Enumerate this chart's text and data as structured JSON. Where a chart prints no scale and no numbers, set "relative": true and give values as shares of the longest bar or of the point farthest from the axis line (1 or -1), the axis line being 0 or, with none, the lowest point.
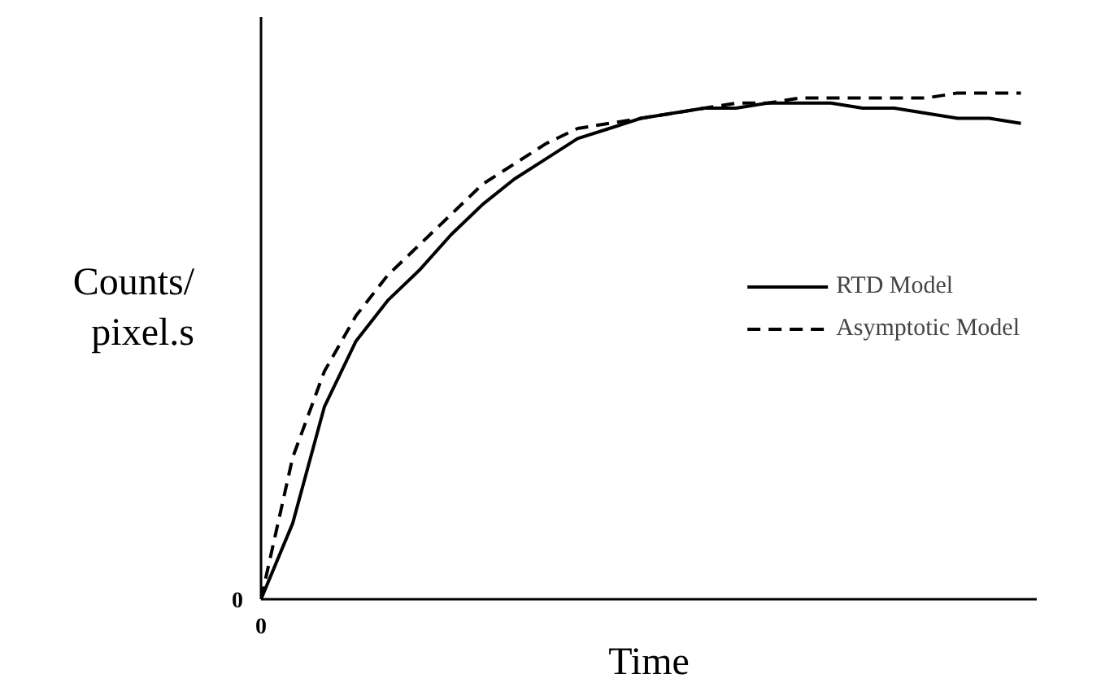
{
  "chart_data": {
    "type": "line",
    "relative": true,
    "xlabel": "Time",
    "ylabel": "Counts/\npixel.s",
    "categories": [
      null,
      null,
      null,
      null,
      null,
      null,
      null,
      null,
      null,
      null,
      null,
      null,
      null,
      null,
      null,
      null,
      null,
      null,
      null,
      null,
      null,
      null,
      null,
      null,
      null
    ],
    "series": [
      {
        "name": "RTD Model",
        "color": "#000000",
        "line_style": "solid",
        "values": [
          0,
          0.15,
          0.38,
          0.51,
          0.59,
          0.65,
          0.72,
          0.78,
          0.83,
          0.87,
          0.91,
          0.93,
          0.95,
          0.96,
          0.97,
          0.97,
          0.98,
          0.98,
          0.98,
          0.97,
          0.97,
          0.96,
          0.95,
          0.95,
          0.94
        ]
      },
      {
        "name": "Asymptotic Model",
        "color": "#000000",
        "line_style": "dashed",
        "values": [
          0,
          0.28,
          0.45,
          0.56,
          0.64,
          0.7,
          0.76,
          0.82,
          0.86,
          0.9,
          0.93,
          0.94,
          0.95,
          0.96,
          0.97,
          0.98,
          0.98,
          0.99,
          0.99,
          0.99,
          0.99,
          0.99,
          1.0,
          1.0,
          1.0
        ]
      }
    ],
    "legend": "center right",
    "annotations": [
      "0",
      "0"
    ]
  }
}
